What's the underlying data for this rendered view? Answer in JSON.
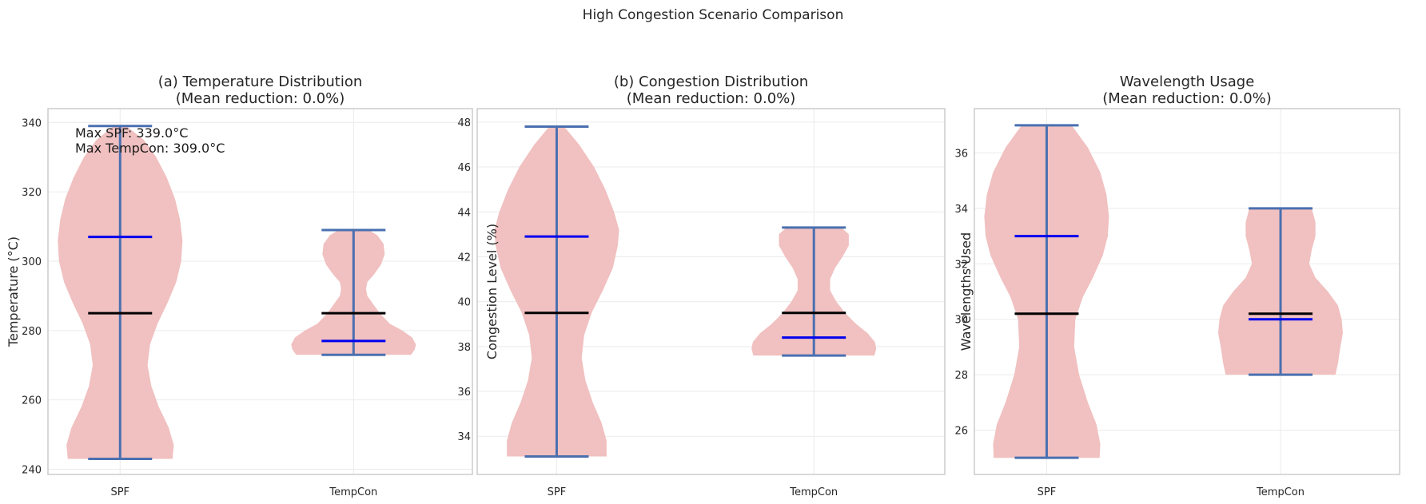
{
  "figure": {
    "suptitle": "High Congestion Scenario Comparison"
  },
  "chart_data": [
    {
      "type": "violin",
      "title_line1": "(a) Temperature Distribution",
      "title_line2": "(Mean reduction: 0.0%)",
      "ylabel": "Temperature (°C)",
      "categories": [
        "SPF",
        "TempCon"
      ],
      "ylim": [
        238.5,
        344
      ],
      "yticks": [
        240,
        260,
        280,
        300,
        320,
        340
      ],
      "grid": true,
      "annotation": [
        "Max SPF: 339.0°C",
        "Max TempCon: 309.0°C"
      ],
      "series": [
        {
          "category": "SPF",
          "min": 243,
          "max": 339,
          "mean": 285,
          "median": 307,
          "density": [
            [
              243,
              0.84
            ],
            [
              247,
              0.86
            ],
            [
              252,
              0.78
            ],
            [
              258,
              0.62
            ],
            [
              264,
              0.5
            ],
            [
              270,
              0.44
            ],
            [
              276,
              0.48
            ],
            [
              282,
              0.6
            ],
            [
              288,
              0.76
            ],
            [
              294,
              0.9
            ],
            [
              300,
              0.98
            ],
            [
              306,
              1.0
            ],
            [
              312,
              0.96
            ],
            [
              318,
              0.88
            ],
            [
              324,
              0.75
            ],
            [
              330,
              0.58
            ],
            [
              335,
              0.38
            ],
            [
              339,
              0.1
            ]
          ]
        },
        {
          "category": "TempCon",
          "min": 273,
          "max": 309,
          "mean": 285,
          "median": 277,
          "density": [
            [
              273,
              0.92
            ],
            [
              274.5,
              0.98
            ],
            [
              276,
              1.0
            ],
            [
              278,
              0.94
            ],
            [
              280,
              0.78
            ],
            [
              282,
              0.58
            ],
            [
              285,
              0.42
            ],
            [
              288,
              0.3
            ],
            [
              290,
              0.22
            ],
            [
              292,
              0.2
            ],
            [
              294,
              0.22
            ],
            [
              296,
              0.32
            ],
            [
              299,
              0.44
            ],
            [
              302,
              0.5
            ],
            [
              305,
              0.48
            ],
            [
              307.5,
              0.38
            ],
            [
              309,
              0.24
            ]
          ]
        }
      ],
      "colors": {
        "violin": "#f1c0c0",
        "mean": "#000000",
        "median": "#0000ee",
        "extrema": "#4a70b0"
      }
    },
    {
      "type": "violin",
      "title_line1": "(b) Congestion Distribution",
      "title_line2": "(Mean reduction: 0.0%)",
      "ylabel": "Congestion Level (%)",
      "categories": [
        "SPF",
        "TempCon"
      ],
      "ylim": [
        32.3,
        48.6
      ],
      "yticks": [
        34,
        36,
        38,
        40,
        42,
        44,
        46,
        48
      ],
      "grid": true,
      "series": [
        {
          "category": "SPF",
          "min": 33.1,
          "max": 47.8,
          "mean": 39.5,
          "median": 42.9,
          "density": [
            [
              33.1,
              0.8
            ],
            [
              33.8,
              0.8
            ],
            [
              34.6,
              0.72
            ],
            [
              35.5,
              0.58
            ],
            [
              36.5,
              0.46
            ],
            [
              37.5,
              0.4
            ],
            [
              38.5,
              0.44
            ],
            [
              39.5,
              0.56
            ],
            [
              40.5,
              0.74
            ],
            [
              41.5,
              0.9
            ],
            [
              42.5,
              0.98
            ],
            [
              43.2,
              1.0
            ],
            [
              44,
              0.92
            ],
            [
              45,
              0.78
            ],
            [
              46,
              0.6
            ],
            [
              47,
              0.36
            ],
            [
              47.8,
              0.12
            ]
          ]
        },
        {
          "category": "TempCon",
          "min": 37.6,
          "max": 43.3,
          "mean": 39.5,
          "median": 38.4,
          "density": [
            [
              37.6,
              0.97
            ],
            [
              37.9,
              1.0
            ],
            [
              38.2,
              0.98
            ],
            [
              38.6,
              0.86
            ],
            [
              39,
              0.68
            ],
            [
              39.5,
              0.5
            ],
            [
              40,
              0.36
            ],
            [
              40.5,
              0.26
            ],
            [
              41,
              0.26
            ],
            [
              41.5,
              0.34
            ],
            [
              42,
              0.46
            ],
            [
              42.5,
              0.56
            ],
            [
              43,
              0.56
            ],
            [
              43.3,
              0.44
            ]
          ]
        }
      ],
      "colors": {
        "violin": "#f1c0c0",
        "mean": "#000000",
        "median": "#0000ee",
        "extrema": "#4a70b0"
      }
    },
    {
      "type": "violin",
      "title_line1": "Wavelength Usage",
      "title_line2": "(Mean reduction: 0.0%)",
      "ylabel": "Wavelengths Used",
      "categories": [
        "SPF",
        "TempCon"
      ],
      "ylim": [
        24.4,
        37.6
      ],
      "yticks": [
        26,
        28,
        30,
        32,
        34,
        36
      ],
      "grid": true,
      "series": [
        {
          "category": "SPF",
          "min": 25,
          "max": 37,
          "mean": 30.2,
          "median": 33,
          "density": [
            [
              25,
              0.85
            ],
            [
              25.5,
              0.86
            ],
            [
              26.2,
              0.8
            ],
            [
              27,
              0.66
            ],
            [
              28,
              0.52
            ],
            [
              29,
              0.44
            ],
            [
              30,
              0.46
            ],
            [
              30.8,
              0.58
            ],
            [
              31.5,
              0.74
            ],
            [
              32.3,
              0.9
            ],
            [
              33,
              0.98
            ],
            [
              33.7,
              1.0
            ],
            [
              34.5,
              0.96
            ],
            [
              35.3,
              0.86
            ],
            [
              36.2,
              0.66
            ],
            [
              37,
              0.4
            ]
          ]
        },
        {
          "category": "TempCon",
          "min": 28,
          "max": 34,
          "mean": 30.2,
          "median": 30,
          "density": [
            [
              28,
              0.88
            ],
            [
              28.4,
              0.92
            ],
            [
              29,
              0.96
            ],
            [
              29.5,
              1.0
            ],
            [
              30,
              0.98
            ],
            [
              30.5,
              0.92
            ],
            [
              31,
              0.76
            ],
            [
              31.5,
              0.56
            ],
            [
              32,
              0.46
            ],
            [
              32.5,
              0.5
            ],
            [
              33,
              0.56
            ],
            [
              33.5,
              0.56
            ],
            [
              34,
              0.5
            ]
          ]
        }
      ],
      "colors": {
        "violin": "#f1c0c0",
        "mean": "#000000",
        "median": "#0000ee",
        "extrema": "#4a70b0"
      }
    }
  ]
}
